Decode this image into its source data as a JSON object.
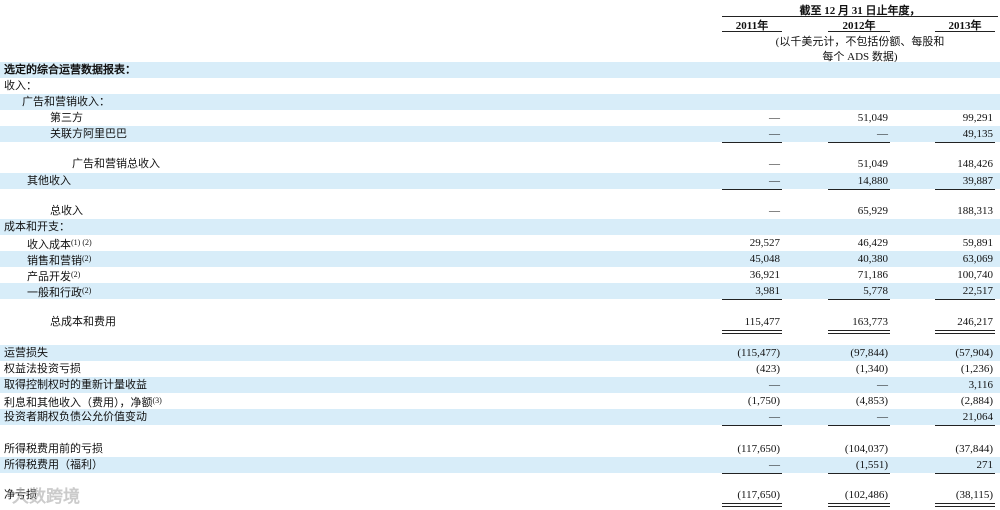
{
  "header": {
    "period": "截至 12 月 31 日止年度，",
    "years": [
      "2011年",
      "2012年",
      "2013年"
    ],
    "note": [
      "(以千美元计，不包括份额、每股和",
      "每个 ADS 数据)"
    ]
  },
  "table": {
    "rows": [
      {
        "label": "选定的综合运营数据报表："
      },
      {
        "label": "收入："
      },
      {
        "label": "广告和营销收入："
      },
      {
        "label": "第三方",
        "values": [
          "—",
          "51,049",
          "99,291"
        ]
      },
      {
        "label": "关联方阿里巴巴",
        "values": [
          "—",
          "—",
          "49,135"
        ]
      },
      {
        "label": "广告和营销总收入",
        "values": [
          "—",
          "51,049",
          "148,426"
        ]
      },
      {
        "label": "其他收入",
        "values": [
          "—",
          "14,880",
          "39,887"
        ]
      },
      {
        "label": "总收入",
        "values": [
          "—",
          "65,929",
          "188,313"
        ]
      },
      {
        "label": "成本和开支："
      },
      {
        "label": "收入成本",
        "note": "(1) (2)",
        "values": [
          "29,527",
          "46,429",
          "59,891"
        ]
      },
      {
        "label": "销售和营销",
        "note": "(2)",
        "values": [
          "45,048",
          "40,380",
          "63,069"
        ]
      },
      {
        "label": "产品开发",
        "note": "(2)",
        "values": [
          "36,921",
          "71,186",
          "100,740"
        ]
      },
      {
        "label": "一般和行政",
        "note": "(2)",
        "values": [
          "3,981",
          "5,778",
          "22,517"
        ]
      },
      {
        "label": "总成本和费用",
        "values": [
          "115,477",
          "163,773",
          "246,217"
        ]
      },
      {
        "label": "运营损失",
        "values": [
          "(115,477)",
          "(97,844)",
          "(57,904)"
        ]
      },
      {
        "label": "权益法投资亏损",
        "values": [
          "(423)",
          "(1,340)",
          "(1,236)"
        ]
      },
      {
        "label": "取得控制权时的重新计量收益",
        "values": [
          "—",
          "—",
          "3,116"
        ]
      },
      {
        "label": "利息和其他收入（费用），净额",
        "note": "(3)",
        "values": [
          "(1,750)",
          "(4,853)",
          "(2,884)"
        ]
      },
      {
        "label": "投资者期权负债公允价值变动",
        "values": [
          "—",
          "—",
          "21,064"
        ]
      },
      {
        "label": "所得税费用前的亏损",
        "values": [
          "(117,650)",
          "(104,037)",
          "(37,844)"
        ]
      },
      {
        "label": "所得税费用（福利）",
        "values": [
          "—",
          "(1,551)",
          "271"
        ]
      },
      {
        "label": "净亏损",
        "values": [
          "(117,650)",
          "(102,486)",
          "(38,115)"
        ]
      }
    ]
  },
  "watermark": "大数跨境"
}
